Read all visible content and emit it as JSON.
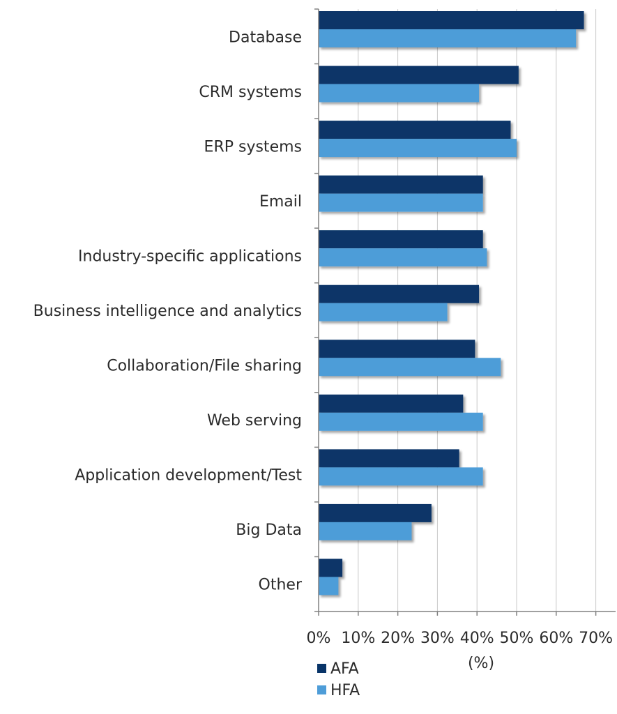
{
  "chart_data": {
    "type": "bar",
    "orientation": "horizontal",
    "categories": [
      "Database",
      "CRM systems",
      "ERP systems",
      "Email",
      "Industry-specific applications",
      "Business intelligence and analytics",
      "Collaboration/File sharing",
      "Web serving",
      "Application development/Test",
      "Big Data",
      "Other"
    ],
    "series": [
      {
        "name": "AFA",
        "color": "#083468",
        "values": [
          67,
          50.5,
          48.5,
          41.5,
          41.5,
          40.5,
          39.5,
          36.5,
          35.5,
          28.5,
          6
        ]
      },
      {
        "name": "HFA",
        "color": "#4e9dd8",
        "values": [
          65,
          40.5,
          50,
          41.5,
          42.5,
          32.5,
          46,
          41.5,
          41.5,
          23.5,
          5
        ]
      }
    ],
    "xlabel": "(%)",
    "ylabel": "",
    "xlim": [
      0,
      75
    ],
    "xticks": [
      0,
      10,
      20,
      30,
      40,
      50,
      60,
      70
    ],
    "xtick_labels": [
      "0%",
      "10%",
      "20%",
      "30%",
      "40%",
      "50%",
      "60%",
      "70%"
    ],
    "grid": "vertical",
    "legend": "bottom-left"
  }
}
